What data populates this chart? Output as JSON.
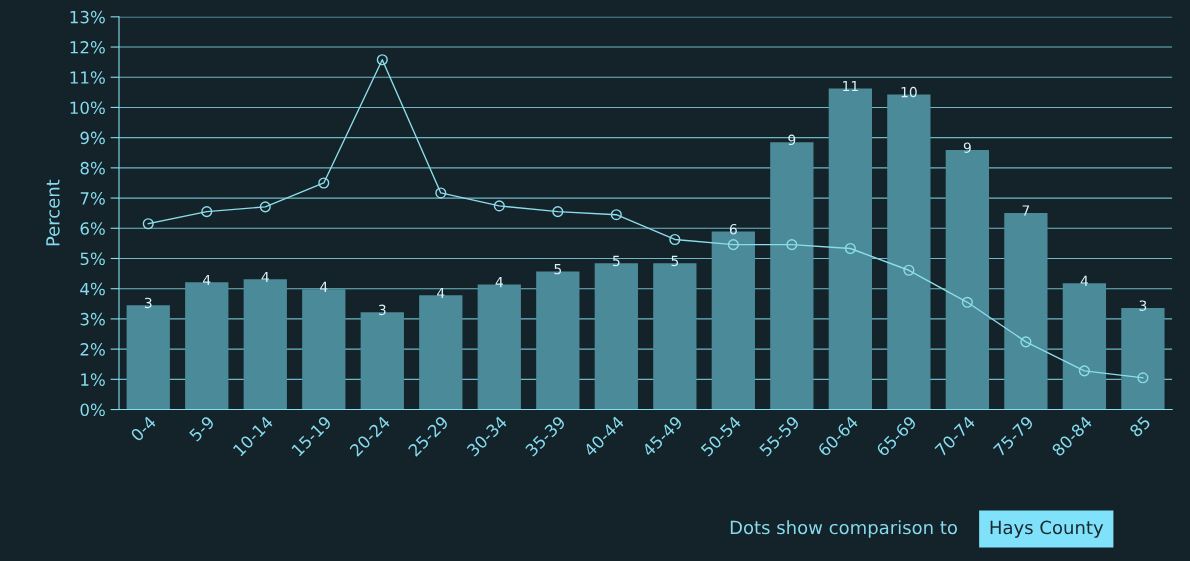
{
  "chart_data": {
    "type": "bar",
    "ylabel": "Percent",
    "categories": [
      "0-4",
      "5-9",
      "10-14",
      "15-19",
      "20-24",
      "25-29",
      "30-34",
      "35-39",
      "40-44",
      "45-49",
      "50-54",
      "55-59",
      "60-64",
      "65-69",
      "70-74",
      "75-79",
      "80-84",
      "85"
    ],
    "series": [
      {
        "color": "#4b8a98",
        "values": [
          3.45,
          4.21,
          4.31,
          3.98,
          3.22,
          3.78,
          4.14,
          4.57,
          4.84,
          4.84,
          5.89,
          8.85,
          10.63,
          10.43,
          8.59,
          6.51,
          4.18,
          3.36
        ],
        "value_labels": [
          "3",
          "4",
          "4",
          "4",
          "3",
          "4",
          "4",
          "5",
          "5",
          "5",
          "6",
          "9",
          "11",
          "10",
          "9",
          "7",
          "4",
          "3"
        ]
      },
      {
        "type": "line",
        "color": "#8cdcea",
        "marker": "circle",
        "values": [
          6.15,
          6.55,
          6.71,
          7.5,
          11.58,
          7.17,
          6.74,
          6.55,
          6.45,
          5.63,
          5.46,
          5.46,
          5.33,
          4.61,
          3.55,
          2.24,
          1.28,
          1.05
        ]
      }
    ],
    "ylim": [
      0,
      13
    ],
    "yticks": [
      {
        "value": 0,
        "label": "0%"
      },
      {
        "value": 1,
        "label": "1%"
      },
      {
        "value": 2,
        "label": "2%"
      },
      {
        "value": 3,
        "label": "3%"
      },
      {
        "value": 4,
        "label": "4%"
      },
      {
        "value": 5,
        "label": "5%"
      },
      {
        "value": 6,
        "label": "6%"
      },
      {
        "value": 7,
        "label": "7%"
      },
      {
        "value": 8,
        "label": "8%"
      },
      {
        "value": 9,
        "label": "9%"
      },
      {
        "value": 10,
        "label": "10%"
      },
      {
        "value": 11,
        "label": "11%"
      },
      {
        "value": 12,
        "label": "12%"
      },
      {
        "value": 13,
        "label": "13%"
      }
    ],
    "grid": "y",
    "annotations": [
      "Dots show comparison to",
      "Hays County"
    ]
  }
}
